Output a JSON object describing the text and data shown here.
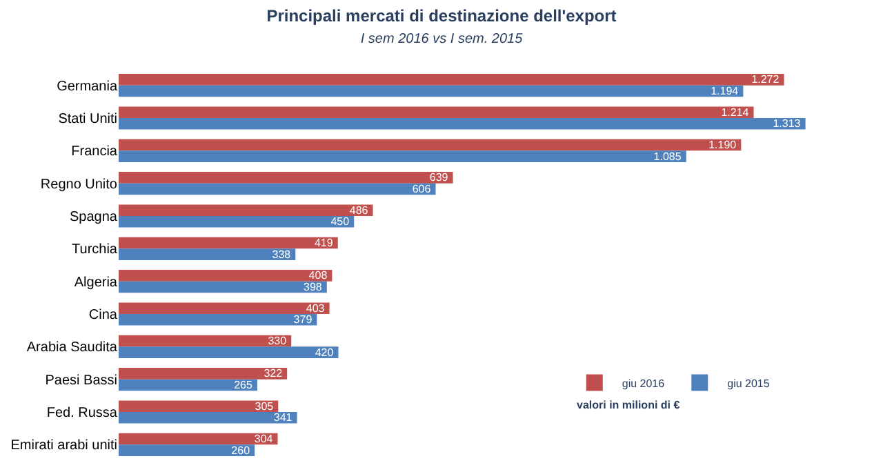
{
  "chart_data": {
    "type": "bar",
    "orientation": "horizontal",
    "title": "Principali mercati di destinazione dell'export",
    "subtitle": "I sem 2016 vs I sem. 2015",
    "categories": [
      "Germania",
      "Stati Uniti",
      "Francia",
      "Regno Unito",
      "Spagna",
      "Turchia",
      "Algeria",
      "Cina",
      "Arabia Saudita",
      "Paesi Bassi",
      "Fed. Russa",
      "Emirati arabi uniti"
    ],
    "series": [
      {
        "name": "giu 2016",
        "color": "#c0504d",
        "values": [
          1272,
          1214,
          1190,
          639,
          486,
          419,
          408,
          403,
          330,
          322,
          305,
          304
        ],
        "value_labels": [
          "1.272",
          "1.214",
          "1.190",
          "639",
          "486",
          "419",
          "408",
          "403",
          "330",
          "322",
          "305",
          "304"
        ]
      },
      {
        "name": "giu 2015",
        "color": "#4f81bd",
        "values": [
          1194,
          1313,
          1085,
          606,
          450,
          338,
          398,
          379,
          420,
          265,
          341,
          260
        ],
        "value_labels": [
          "1.194",
          "1.313",
          "1.085",
          "606",
          "450",
          "338",
          "398",
          "379",
          "420",
          "265",
          "341",
          "260"
        ]
      }
    ],
    "annotations": [
      "valori in milioni di €"
    ],
    "legend": "bottom right",
    "tick_labels": "y"
  }
}
